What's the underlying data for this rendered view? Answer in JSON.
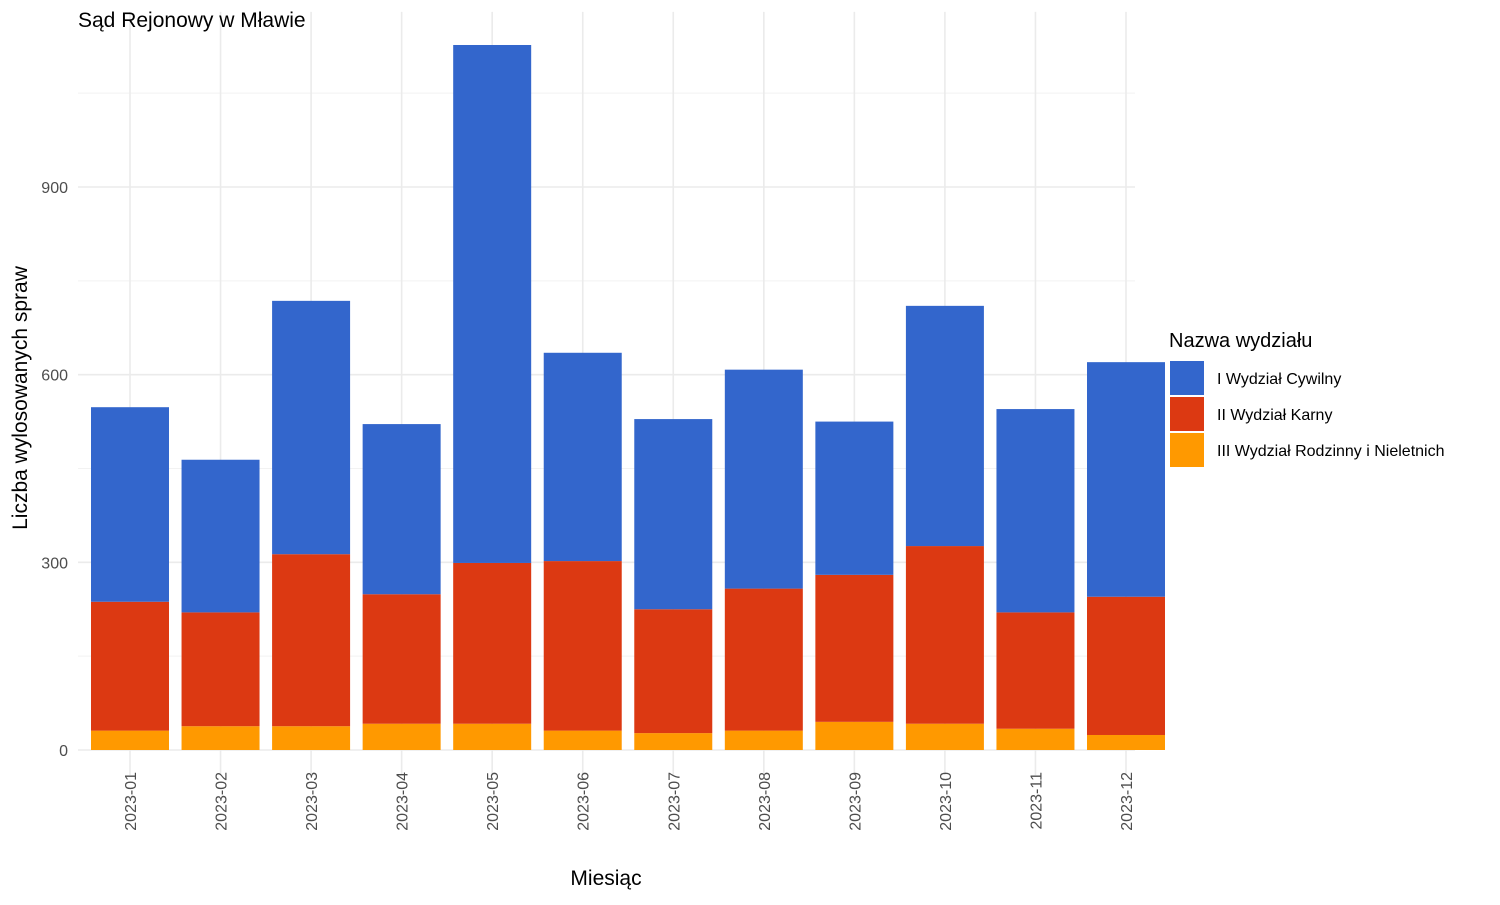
{
  "chart_data": {
    "type": "bar",
    "stacked": true,
    "title": "Sąd Rejonowy w Mławie",
    "xlabel": "Miesiąc",
    "ylabel": "Liczba wylosowanych spraw",
    "categories": [
      "2023-01",
      "2023-02",
      "2023-03",
      "2023-04",
      "2023-05",
      "2023-06",
      "2023-07",
      "2023-08",
      "2023-09",
      "2023-10",
      "2023-11",
      "2023-12"
    ],
    "series": [
      {
        "name": "III Wydział Rodzinny i Nieletnich",
        "color": "#FF9900",
        "values": [
          31,
          38,
          38,
          42,
          42,
          31,
          27,
          31,
          45,
          42,
          34,
          24
        ]
      },
      {
        "name": "II Wydział Karny",
        "color": "#DC3912",
        "values": [
          206,
          182,
          275,
          207,
          257,
          271,
          198,
          227,
          235,
          284,
          186,
          221
        ]
      },
      {
        "name": "I Wydział Cywilny",
        "color": "#3366CC",
        "values": [
          311,
          244,
          405,
          272,
          828,
          333,
          304,
          350,
          245,
          384,
          325,
          375
        ]
      }
    ],
    "legend": {
      "title": "Nazwa wydziału",
      "position": "right",
      "order": [
        "I Wydział Cywilny",
        "II Wydział Karny",
        "III Wydział Rodzinny i Nieletnich"
      ]
    },
    "yticks": [
      0,
      300,
      600,
      900
    ],
    "ylim": [
      -40,
      1180
    ],
    "grid": true
  }
}
